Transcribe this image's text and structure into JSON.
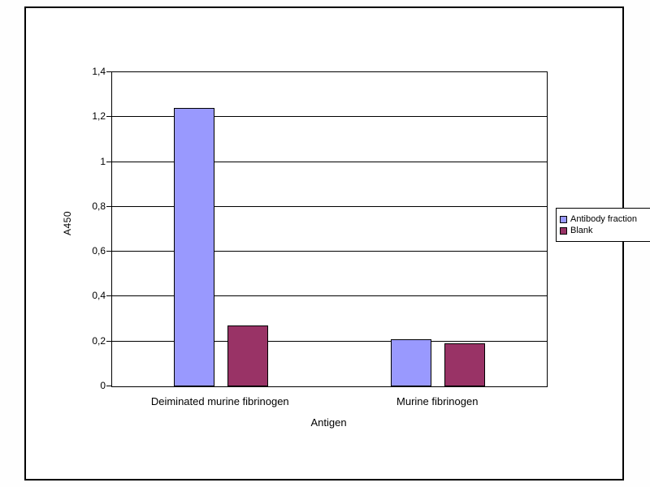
{
  "chart_data": {
    "type": "bar",
    "title": "",
    "xlabel": "Antigen",
    "ylabel": "A450",
    "ylim": [
      0,
      1.4
    ],
    "grid": true,
    "legend_position": "right",
    "decimal_separator": ",",
    "categories": [
      "Deiminated murine fibrinogen",
      "Murine fibrinogen"
    ],
    "yticks": [
      "0",
      "0,2",
      "0,4",
      "0,6",
      "0,8",
      "1",
      "1,2",
      "1,4"
    ],
    "series": [
      {
        "name": "Antibody fraction",
        "color": "#9999fe",
        "values": [
          1.24,
          0.21
        ]
      },
      {
        "name": "Blank",
        "color": "#993366",
        "values": [
          0.27,
          0.19
        ]
      }
    ],
    "colors": {
      "axis": "#000000",
      "gridline": "#000000",
      "plot_background": "#ffffff",
      "frame_border": "#000000"
    }
  }
}
